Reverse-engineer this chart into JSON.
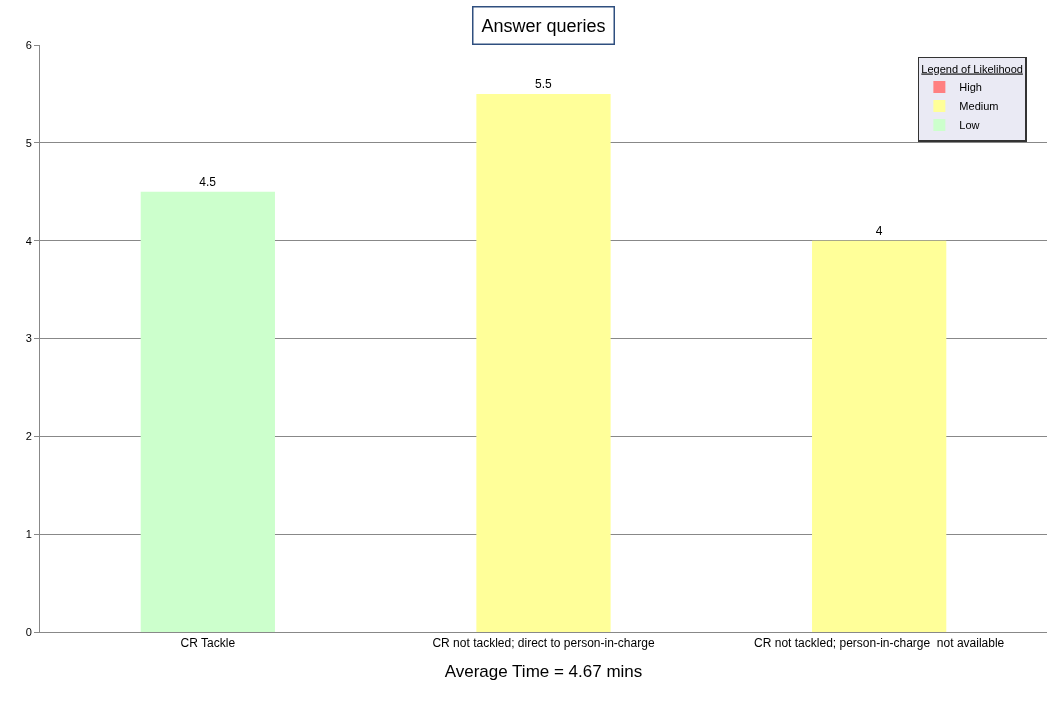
{
  "chart_data": {
    "type": "bar",
    "title": "Answer queries",
    "xlabel": "Average Time = 4.67 mins",
    "legend_title": "Legend of Likelihood",
    "categories": [
      "CR Tackle",
      "CR not tackled; direct to person-in-charge",
      "CR not tackled; person-in-charge  not available"
    ],
    "series": [
      {
        "name": "High",
        "color": "#ff8080",
        "values": [
          null,
          null,
          null
        ]
      },
      {
        "name": "Medium",
        "color": "#ffff99",
        "values": [
          null,
          5.5,
          4
        ]
      },
      {
        "name": "Low",
        "color": "#ccffcc",
        "values": [
          4.5,
          null,
          null
        ]
      }
    ],
    "ylim": [
      0,
      6
    ],
    "yticks": [
      0,
      1,
      2,
      3,
      4,
      5,
      6
    ],
    "grid": "y",
    "legend": "top right",
    "data_labels": true
  }
}
